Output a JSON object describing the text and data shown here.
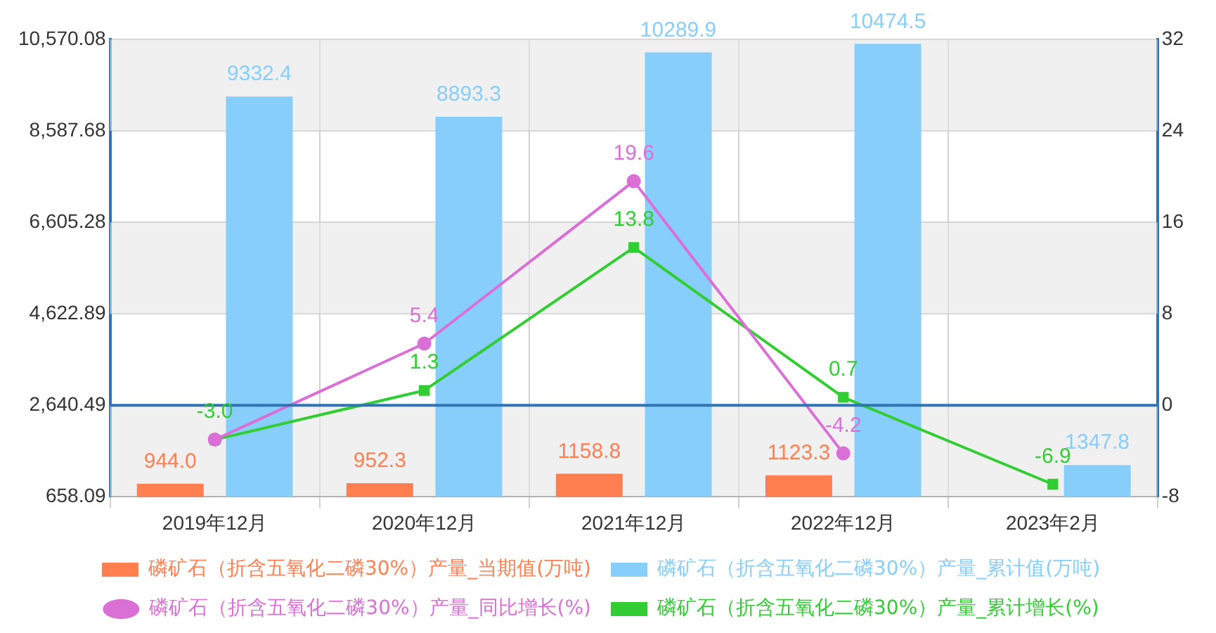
{
  "chart_data": {
    "type": "bar",
    "categories": [
      "2019年12月",
      "2020年12月",
      "2021年12月",
      "2022年12月",
      "2023年2月"
    ],
    "series": [
      {
        "name": "磷矿石（折含五氧化二磷30%）产量_当期值(万吨)",
        "color": "#ff7f50",
        "values": [
          944,
          952.3,
          1158.8,
          1123.3,
          null
        ],
        "value_labels": [
          "944.0",
          "952.3",
          "1158.8",
          "1123.3",
          null
        ]
      },
      {
        "name": "磷矿石（折含五氧化二磷30%）产量_累计值(万吨)",
        "color": "#87cefa",
        "values": [
          9332.4,
          8893.3,
          10289.9,
          10474.5,
          1347.8
        ],
        "value_labels": [
          "9332.4",
          "8893.3",
          "10289.9",
          "10474.5",
          "1347.8"
        ]
      },
      {
        "name": "磷矿石（折含五氧化二磷30%）产量_同比增长(%)",
        "type": "line",
        "axis": "y2",
        "marker": "circle",
        "color": "#da70d6",
        "values": [
          -3,
          5.4,
          19.6,
          -4.2,
          null
        ],
        "value_labels": [
          null,
          "5.4",
          "19.6",
          "-4.2",
          null
        ]
      },
      {
        "name": "磷矿石（折含五氧化二磷30%）产量_累计增长(%)",
        "type": "line",
        "axis": "y2",
        "marker": "square",
        "color": "#32cd32",
        "values": [
          -3,
          1.3,
          13.8,
          0.7,
          -6.9
        ],
        "value_labels": [
          "-3.0",
          "1.3",
          "13.8",
          "0.7",
          "-6.9"
        ]
      }
    ],
    "ylim": [
      658.09,
      10570.08
    ],
    "yticks": [
      658.09,
      {
        "value": 2640.49,
        "label": "2,640.49"
      },
      {
        "value": 4622.89,
        "label": "4,622.89"
      },
      {
        "value": 6605.28,
        "label": "6,605.28"
      },
      {
        "value": 8587.68,
        "label": "8,587.68"
      },
      {
        "value": 10570.08,
        "label": "10,570.08"
      }
    ],
    "y2lim": [
      -8,
      32
    ],
    "y2ticks": [
      -8,
      0,
      8,
      16,
      24,
      32
    ],
    "ref_lines": [
      {
        "axis": "y2",
        "value": 0,
        "color": "#2f75b5"
      }
    ],
    "grid": true,
    "legend": "bottom"
  }
}
